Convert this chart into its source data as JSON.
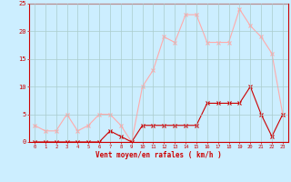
{
  "hours": [
    0,
    1,
    2,
    3,
    4,
    5,
    6,
    7,
    8,
    9,
    10,
    11,
    12,
    13,
    14,
    15,
    16,
    17,
    18,
    19,
    20,
    21,
    22,
    23
  ],
  "wind_avg": [
    0,
    0,
    0,
    0,
    0,
    0,
    0,
    2,
    1,
    0,
    3,
    3,
    3,
    3,
    3,
    3,
    7,
    7,
    7,
    7,
    10,
    5,
    1,
    5
  ],
  "wind_gust": [
    3,
    2,
    2,
    5,
    2,
    3,
    5,
    5,
    3,
    0,
    10,
    13,
    19,
    18,
    23,
    23,
    18,
    18,
    18,
    24,
    21,
    19,
    16,
    5
  ],
  "avg_color": "#cc0000",
  "gust_color": "#ffaaaa",
  "bg_color": "#cceeff",
  "grid_color": "#aacccc",
  "xlabel": "Vent moyen/en rafales ( km/h )",
  "xlabel_color": "#cc0000",
  "tick_color": "#cc0000",
  "ylim": [
    0,
    25
  ],
  "yticks": [
    0,
    5,
    10,
    15,
    20,
    25
  ]
}
